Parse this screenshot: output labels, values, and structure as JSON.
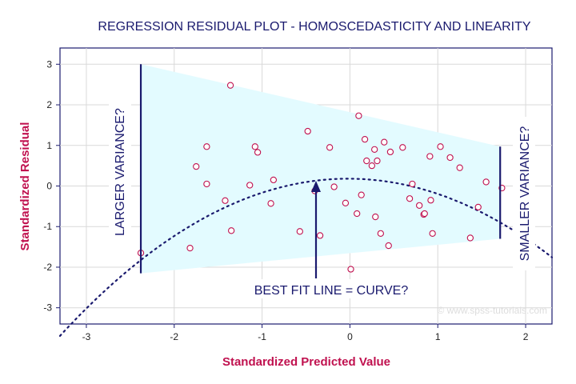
{
  "chart_data": {
    "type": "scatter",
    "title": "REGRESSION RESIDUAL PLOT - HOMOSCEDASTICITY AND LINEARITY",
    "xlabel": "Standardized Predicted Value",
    "ylabel": "Standardized Residual",
    "xlim": [
      -3.3,
      2.3
    ],
    "ylim": [
      -3.4,
      3.4
    ],
    "x_ticks": [
      "-3",
      "-2",
      "-1",
      "0",
      "1",
      "2"
    ],
    "y_ticks": [
      "-3",
      "-2",
      "-1",
      "0",
      "1",
      "2",
      "3"
    ],
    "grid": true,
    "points": [
      {
        "x": -2.38,
        "y": -1.65
      },
      {
        "x": -1.82,
        "y": -1.53
      },
      {
        "x": -1.75,
        "y": 0.48
      },
      {
        "x": -1.63,
        "y": 0.97
      },
      {
        "x": -1.63,
        "y": 0.05
      },
      {
        "x": -1.42,
        "y": -0.36
      },
      {
        "x": -1.36,
        "y": 2.48
      },
      {
        "x": -1.35,
        "y": -1.1
      },
      {
        "x": -1.14,
        "y": 0.02
      },
      {
        "x": -1.08,
        "y": 0.97
      },
      {
        "x": -1.05,
        "y": 0.83
      },
      {
        "x": -0.9,
        "y": -0.43
      },
      {
        "x": -0.87,
        "y": 0.15
      },
      {
        "x": -0.57,
        "y": -1.12
      },
      {
        "x": -0.48,
        "y": 1.35
      },
      {
        "x": -0.4,
        "y": -0.12
      },
      {
        "x": -0.34,
        "y": -1.22
      },
      {
        "x": -0.23,
        "y": 0.95
      },
      {
        "x": -0.18,
        "y": -0.02
      },
      {
        "x": -0.05,
        "y": -0.42
      },
      {
        "x": 0.01,
        "y": -2.05
      },
      {
        "x": 0.08,
        "y": -0.68
      },
      {
        "x": 0.1,
        "y": 1.73
      },
      {
        "x": 0.13,
        "y": -0.22
      },
      {
        "x": 0.17,
        "y": 1.15
      },
      {
        "x": 0.19,
        "y": 0.62
      },
      {
        "x": 0.25,
        "y": 0.5
      },
      {
        "x": 0.28,
        "y": 0.9
      },
      {
        "x": 0.29,
        "y": -0.76
      },
      {
        "x": 0.31,
        "y": 0.62
      },
      {
        "x": 0.35,
        "y": -1.17
      },
      {
        "x": 0.39,
        "y": 1.08
      },
      {
        "x": 0.44,
        "y": -1.47
      },
      {
        "x": 0.46,
        "y": 0.84
      },
      {
        "x": 0.6,
        "y": 0.95
      },
      {
        "x": 0.68,
        "y": -0.31
      },
      {
        "x": 0.71,
        "y": 0.05
      },
      {
        "x": 0.79,
        "y": -0.48
      },
      {
        "x": 0.84,
        "y": -0.7
      },
      {
        "x": 0.85,
        "y": -0.68
      },
      {
        "x": 0.91,
        "y": 0.73
      },
      {
        "x": 0.92,
        "y": -0.35
      },
      {
        "x": 0.94,
        "y": -1.17
      },
      {
        "x": 1.03,
        "y": 0.97
      },
      {
        "x": 1.14,
        "y": 0.7
      },
      {
        "x": 1.25,
        "y": 0.45
      },
      {
        "x": 1.37,
        "y": -1.28
      },
      {
        "x": 1.46,
        "y": -0.52
      },
      {
        "x": 1.55,
        "y": 0.1
      },
      {
        "x": 1.73,
        "y": -0.05
      }
    ],
    "fit_curve": {
      "a": 0.18,
      "vertex_x": -0.02,
      "curvature": -0.36
    },
    "variance_band": {
      "x_start": -2.38,
      "x_end": 1.71,
      "upper": [
        3.0,
        0.97
      ],
      "lower": [
        -2.15,
        -1.3
      ]
    },
    "annotations": [
      {
        "text": "LARGER VARIANCE?",
        "x": -2.38
      },
      {
        "text": "SMALLER VARIANCE?",
        "x": 1.71
      },
      {
        "text": "BEST FIT LINE = CURVE?",
        "x": -0.38
      }
    ],
    "watermark": "© www.spss-tutorials.com",
    "colors": {
      "title": "#1a1a6e",
      "axis_title": "#c0114f",
      "points": "#c0114f",
      "band": "#e3fbff",
      "lines": "#1a1a6e",
      "grid": "#d9d9d9"
    }
  }
}
